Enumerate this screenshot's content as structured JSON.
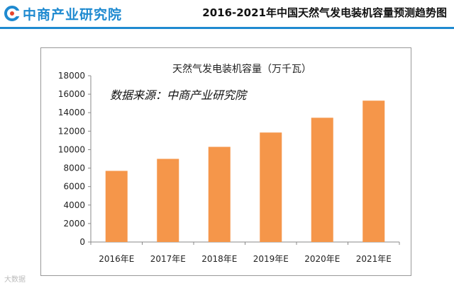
{
  "header": {
    "logo_text": "中商产业研究院",
    "page_title": "2016-2021年中国天然气发电装机容量预测趋势图"
  },
  "colors": {
    "brand": "#1f8ad0",
    "bar": "#f5964a"
  },
  "chart_data": {
    "type": "bar",
    "title": "天然气发电装机容量（万千瓦）",
    "annotation": "数据来源：中商产业研究院",
    "categories": [
      "2016年E",
      "2017年E",
      "2018年E",
      "2019年E",
      "2020年E",
      "2021年E"
    ],
    "values": [
      7700,
      9000,
      10300,
      11850,
      13450,
      15300
    ],
    "ylim": [
      0,
      18000
    ],
    "yticks": [
      "0",
      "2000",
      "4000",
      "6000",
      "8000",
      "10000",
      "12000",
      "14000",
      "16000",
      "18000"
    ],
    "grid": false,
    "legend": "none"
  },
  "watermark": "大数据"
}
